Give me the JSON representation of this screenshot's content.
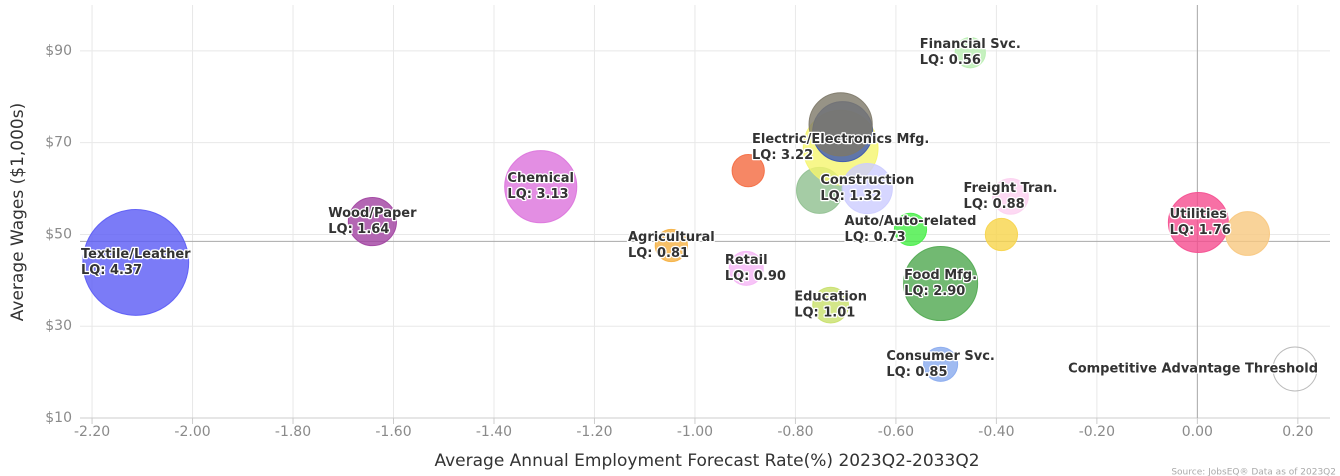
{
  "chart_data": {
    "type": "bubble",
    "x_label": "Average Annual Employment Forecast Rate(%) 2023Q2-2033Q2",
    "y_label": "Average Wages ($1,000s)",
    "source": "Source: JobsEQ® Data as of 2023Q2",
    "xlim": [
      -2.224,
      0.264
    ],
    "ylim": [
      10,
      100
    ],
    "xticks": [
      {
        "value": -2.2,
        "label": "-2.20"
      },
      {
        "value": -2.0,
        "label": "-2.00"
      },
      {
        "value": -1.8,
        "label": "-1.80"
      },
      {
        "value": -1.6,
        "label": "-1.60"
      },
      {
        "value": -1.4,
        "label": "-1.40"
      },
      {
        "value": -1.2,
        "label": "-1.20"
      },
      {
        "value": -1.0,
        "label": "-1.00"
      },
      {
        "value": -0.8,
        "label": "-0.80"
      },
      {
        "value": -0.6,
        "label": "-0.60"
      },
      {
        "value": -0.4,
        "label": "-0.40"
      },
      {
        "value": -0.2,
        "label": "-0.20"
      },
      {
        "value": 0,
        "label": "0.00"
      },
      {
        "value": 0.2,
        "label": "0.20"
      }
    ],
    "yticks": [
      {
        "value": 10,
        "label": "$10"
      },
      {
        "value": 30,
        "label": "$30"
      },
      {
        "value": 50,
        "label": "$50"
      },
      {
        "value": 70,
        "label": "$70"
      },
      {
        "value": 90,
        "label": "$90"
      }
    ],
    "grid": true,
    "threshold": {
      "x": 0,
      "y": 48.5,
      "label": "Competitive Advantage Threshold"
    },
    "categories": [
      "Textile/Leather",
      "Wood/Paper",
      "Chemical",
      "Agricultural",
      null,
      "Retail",
      "Education",
      null,
      "Electric/Electronics Mfg.",
      null,
      null,
      "Construction",
      "Auto/Auto-related",
      "Food Mfg.",
      "Consumer Svc.",
      "Financial Svc.",
      null,
      "Freight Tran.",
      "Utilities",
      null
    ],
    "lq_labels": [
      "LQ: 4.37",
      "LQ: 1.64",
      "LQ: 3.13",
      "LQ: 0.81",
      null,
      "LQ: 0.90",
      "LQ: 1.01",
      null,
      "LQ: 3.22",
      null,
      null,
      "LQ: 1.32",
      "LQ: 0.73",
      "LQ: 2.90",
      "LQ: 0.85",
      "LQ: 0.56",
      null,
      "LQ: 0.88",
      "LQ: 1.76",
      null
    ],
    "x": [
      -2.113,
      -1.642,
      -1.307,
      -1.047,
      -0.894,
      -0.898,
      -0.73,
      -0.752,
      -0.71,
      -0.706,
      -0.71,
      -0.657,
      -0.571,
      -0.511,
      -0.511,
      -0.452,
      -0.39,
      -0.372,
      0.002,
      0.1
    ],
    "y": [
      43.9,
      52.8,
      60.4,
      47.6,
      63.9,
      42.6,
      34.6,
      59.6,
      68.9,
      72.4,
      74.0,
      60.0,
      51.1,
      39.3,
      21.7,
      89.6,
      50.0,
      58.3,
      52.6,
      50.2
    ],
    "sizes": [
      28,
      5.8,
      13,
      2.6,
      2.6,
      2.9,
      3.2,
      5.3,
      14,
      9,
      10,
      6.3,
      2.6,
      13.7,
      2.9,
      2.3,
      2.6,
      3.2,
      9,
      4.8
    ],
    "colors": [
      "#5a5af5",
      "#a040a0",
      "#dc72dc",
      "#f5b041",
      "#f4693f",
      "#f5b5f5",
      "#c8e06a",
      "#8fbf8f",
      "#f5f56e",
      "#3a55b0",
      "#7d7868",
      "#ccccff",
      "#44ee44",
      "#4fa84f",
      "#88aaee",
      "#b8eeb0",
      "#f7d44a",
      "#fcd0f0",
      "#f54c8f",
      "#f8c880"
    ]
  }
}
